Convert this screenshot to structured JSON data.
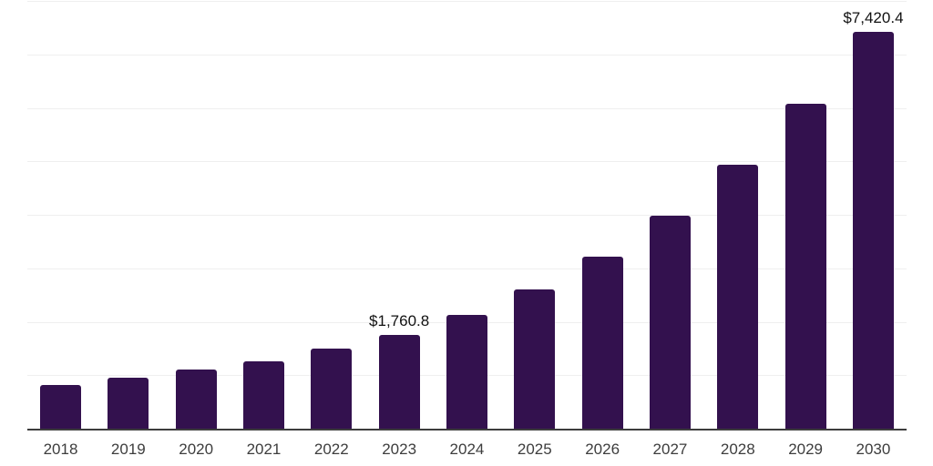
{
  "chart_data": {
    "type": "bar",
    "title": "",
    "xlabel": "",
    "ylabel": "",
    "categories": [
      "2018",
      "2019",
      "2020",
      "2021",
      "2022",
      "2023",
      "2024",
      "2025",
      "2026",
      "2027",
      "2028",
      "2029",
      "2030"
    ],
    "values": [
      810,
      960,
      1100,
      1265,
      1490,
      1760.8,
      2120,
      2610,
      3220,
      3975,
      4940,
      6080,
      7420.4
    ],
    "data_labels": [
      "",
      "",
      "",
      "",
      "",
      "$1,760.8",
      "",
      "",
      "",
      "",
      "",
      "",
      "$7,420.4"
    ],
    "ylim": [
      0,
      8000
    ],
    "grid_step": 1000,
    "grid_visible": true,
    "y_tick_labels_visible": false,
    "legend": "none",
    "colors": {
      "bar": "#33114e",
      "grid": "#efefef",
      "axis": "#3d3d3d",
      "tick_label": "#3d3d3d",
      "value_label": "#111111",
      "background": "#ffffff"
    }
  }
}
